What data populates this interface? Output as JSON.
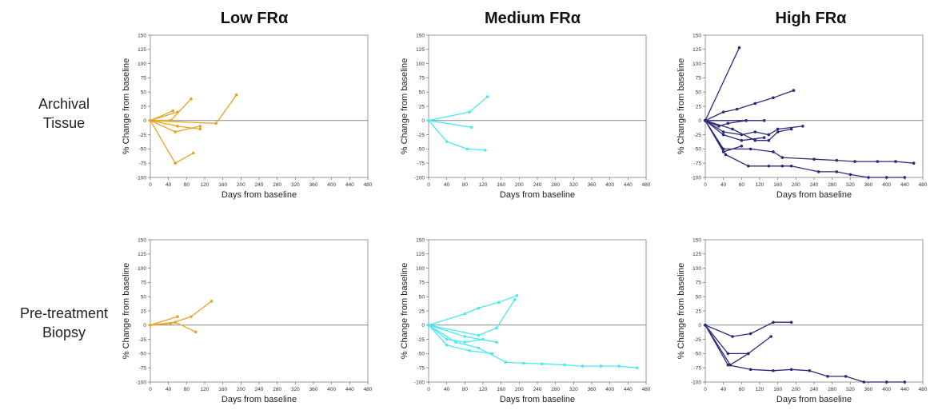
{
  "column_titles": [
    "Low FRα",
    "Medium FRα",
    "High FRα"
  ],
  "row_labels": [
    {
      "line1": "Archival",
      "line2": "Tissue"
    },
    {
      "line1": "Pre-treatment",
      "line2": "Biopsy"
    }
  ],
  "chart_data": [
    {
      "type": "line",
      "row": "Archival Tissue",
      "column": "Low FRα",
      "xlabel": "Days from baseline",
      "ylabel": "% Change from baseline",
      "xlim": [
        0,
        480
      ],
      "ylim": [
        -100,
        150
      ],
      "xticks": [
        0,
        40,
        80,
        120,
        160,
        200,
        240,
        280,
        320,
        360,
        400,
        440,
        480
      ],
      "yticks": [
        150,
        125,
        100,
        75,
        50,
        25,
        0,
        -25,
        -50,
        -75,
        -100
      ],
      "color": "#E8A322",
      "series": [
        {
          "x": [
            0,
            50
          ],
          "y": [
            0,
            17
          ]
        },
        {
          "x": [
            0,
            60
          ],
          "y": [
            0,
            15
          ]
        },
        {
          "x": [
            0,
            45,
            90
          ],
          "y": [
            0,
            0,
            38
          ]
        },
        {
          "x": [
            0,
            55,
            110
          ],
          "y": [
            0,
            -20,
            -10
          ]
        },
        {
          "x": [
            0,
            60,
            110
          ],
          "y": [
            0,
            -10,
            -15
          ]
        },
        {
          "x": [
            0,
            145,
            190
          ],
          "y": [
            0,
            -5,
            45
          ]
        },
        {
          "x": [
            0,
            55,
            95
          ],
          "y": [
            0,
            -75,
            -57
          ]
        }
      ]
    },
    {
      "type": "line",
      "row": "Archival Tissue",
      "column": "Medium FRα",
      "xlabel": "Days from baseline",
      "ylabel": "% Change from baseline",
      "xlim": [
        0,
        480
      ],
      "ylim": [
        -100,
        150
      ],
      "xticks": [
        0,
        40,
        80,
        120,
        160,
        200,
        240,
        280,
        320,
        360,
        400,
        440,
        480
      ],
      "yticks": [
        150,
        125,
        100,
        75,
        50,
        25,
        0,
        -25,
        -50,
        -75,
        -100
      ],
      "color": "#4DE8F0",
      "series": [
        {
          "x": [
            0,
            90,
            130
          ],
          "y": [
            0,
            15,
            42
          ]
        },
        {
          "x": [
            0,
            95
          ],
          "y": [
            0,
            -12
          ]
        },
        {
          "x": [
            0,
            40,
            85,
            125
          ],
          "y": [
            0,
            -37,
            -50,
            -52
          ]
        }
      ]
    },
    {
      "type": "line",
      "row": "Archival Tissue",
      "column": "High FRα",
      "xlabel": "Days from baseline",
      "ylabel": "% Change from baseline",
      "xlim": [
        0,
        480
      ],
      "ylim": [
        -100,
        150
      ],
      "xticks": [
        0,
        40,
        80,
        120,
        160,
        200,
        240,
        280,
        320,
        360,
        400,
        440,
        480
      ],
      "yticks": [
        150,
        125,
        100,
        75,
        50,
        25,
        0,
        -25,
        -50,
        -75,
        -100
      ],
      "color": "#2B2A7A",
      "series": [
        {
          "x": [
            0,
            75
          ],
          "y": [
            0,
            128
          ]
        },
        {
          "x": [
            0,
            40,
            70,
            110,
            150,
            195
          ],
          "y": [
            0,
            15,
            20,
            30,
            40,
            53
          ]
        },
        {
          "x": [
            0,
            90,
            130
          ],
          "y": [
            0,
            0,
            0
          ]
        },
        {
          "x": [
            0,
            30,
            50,
            90
          ],
          "y": [
            0,
            -10,
            -5,
            0
          ]
        },
        {
          "x": [
            0,
            40,
            80,
            110,
            140,
            160,
            215
          ],
          "y": [
            0,
            -20,
            -25,
            -20,
            -25,
            -15,
            -10
          ]
        },
        {
          "x": [
            0,
            60,
            110,
            140,
            160,
            190
          ],
          "y": [
            0,
            -15,
            -35,
            -35,
            -20,
            -15
          ]
        },
        {
          "x": [
            0,
            40,
            80,
            130
          ],
          "y": [
            0,
            -25,
            -35,
            -30
          ]
        },
        {
          "x": [
            0,
            40,
            80
          ],
          "y": [
            0,
            -55,
            -45
          ]
        },
        {
          "x": [
            0,
            40,
            100,
            150,
            170,
            240,
            290,
            330,
            380,
            420,
            460
          ],
          "y": [
            0,
            -50,
            -50,
            -55,
            -65,
            -68,
            -70,
            -72,
            -72,
            -72,
            -75
          ]
        },
        {
          "x": [
            0,
            45,
            95,
            140,
            170,
            190,
            250,
            290,
            320,
            360,
            400,
            440
          ],
          "y": [
            0,
            -60,
            -80,
            -80,
            -80,
            -80,
            -90,
            -90,
            -95,
            -100,
            -100,
            -100
          ]
        }
      ]
    },
    {
      "type": "line",
      "row": "Pre-treatment Biopsy",
      "column": "Low FRα",
      "xlabel": "Days from baseline",
      "ylabel": "% Change from baseline",
      "xlim": [
        0,
        480
      ],
      "ylim": [
        -100,
        150
      ],
      "xticks": [
        0,
        40,
        80,
        120,
        160,
        200,
        240,
        280,
        320,
        360,
        400,
        440,
        480
      ],
      "yticks": [
        150,
        125,
        100,
        75,
        50,
        25,
        0,
        -25,
        -50,
        -75,
        -100
      ],
      "color": "#E8A322",
      "series": [
        {
          "x": [
            0,
            60
          ],
          "y": [
            0,
            15
          ]
        },
        {
          "x": [
            0,
            45,
            90,
            135
          ],
          "y": [
            0,
            3,
            15,
            42
          ]
        },
        {
          "x": [
            0,
            55,
            100
          ],
          "y": [
            0,
            5,
            -12
          ]
        }
      ]
    },
    {
      "type": "line",
      "row": "Pre-treatment Biopsy",
      "column": "Medium FRα",
      "xlabel": "Days from baseline",
      "ylabel": "% Change from baseline",
      "xlim": [
        0,
        480
      ],
      "ylim": [
        -100,
        150
      ],
      "xticks": [
        0,
        40,
        80,
        120,
        160,
        200,
        240,
        280,
        320,
        360,
        400,
        440,
        480
      ],
      "yticks": [
        150,
        125,
        100,
        75,
        50,
        25,
        0,
        -25,
        -50,
        -75,
        -100
      ],
      "color": "#4DE8F0",
      "series": [
        {
          "x": [
            0,
            80,
            110,
            155,
            195
          ],
          "y": [
            0,
            20,
            30,
            40,
            52
          ]
        },
        {
          "x": [
            0,
            110,
            150,
            190
          ],
          "y": [
            0,
            -18,
            -5,
            45
          ]
        },
        {
          "x": [
            0,
            40,
            80,
            120
          ],
          "y": [
            0,
            -25,
            -30,
            -25
          ]
        },
        {
          "x": [
            0,
            80,
            150
          ],
          "y": [
            0,
            -20,
            -30
          ]
        },
        {
          "x": [
            0,
            40,
            90,
            140
          ],
          "y": [
            0,
            -35,
            -45,
            -50
          ]
        },
        {
          "x": [
            0,
            60,
            110,
            170,
            210,
            250,
            300,
            340,
            380,
            420,
            460
          ],
          "y": [
            0,
            -30,
            -40,
            -65,
            -67,
            -68,
            -70,
            -72,
            -72,
            -72,
            -75
          ]
        }
      ]
    },
    {
      "type": "line",
      "row": "Pre-treatment Biopsy",
      "column": "High FRα",
      "xlabel": "Days from baseline",
      "ylabel": "% Change from baseline",
      "xlim": [
        0,
        480
      ],
      "ylim": [
        -100,
        150
      ],
      "xticks": [
        0,
        40,
        80,
        120,
        160,
        200,
        240,
        280,
        320,
        360,
        400,
        440,
        480
      ],
      "yticks": [
        150,
        125,
        100,
        75,
        50,
        25,
        0,
        -25,
        -50,
        -75,
        -100
      ],
      "color": "#2B2A7A",
      "series": [
        {
          "x": [
            0,
            60,
            100,
            150,
            190
          ],
          "y": [
            0,
            -20,
            -15,
            5,
            5
          ]
        },
        {
          "x": [
            0,
            50,
            95
          ],
          "y": [
            0,
            -50,
            -50
          ]
        },
        {
          "x": [
            0,
            55,
            95,
            145
          ],
          "y": [
            0,
            -70,
            -50,
            -20
          ]
        },
        {
          "x": [
            0,
            50,
            100,
            150,
            190,
            230,
            270,
            310,
            350,
            400,
            440
          ],
          "y": [
            0,
            -70,
            -78,
            -80,
            -78,
            -80,
            -90,
            -90,
            -100,
            -100,
            -100
          ]
        }
      ]
    }
  ]
}
